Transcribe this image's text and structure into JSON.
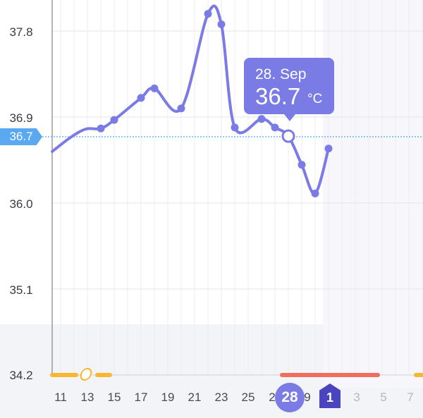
{
  "chart_data": {
    "type": "line",
    "y_ticks": [
      "37.8",
      "36.9",
      "36.0",
      "35.1",
      "34.2"
    ],
    "ylim": [
      34.2,
      38.1
    ],
    "x_tick_labels": [
      "11",
      "13",
      "15",
      "17",
      "19",
      "21",
      "23",
      "25",
      "2",
      "28",
      "9",
      "1",
      "3",
      "5",
      "7"
    ],
    "series": [
      {
        "points": [
          {
            "day": 14,
            "value": 36.78
          },
          {
            "day": 15,
            "value": 36.87
          },
          {
            "day": 17,
            "value": 37.1
          },
          {
            "day": 18,
            "value": 37.2
          },
          {
            "day": 20,
            "value": 36.99
          },
          {
            "day": 22,
            "value": 37.98
          },
          {
            "day": 23,
            "value": 37.87
          },
          {
            "day": 24,
            "value": 36.79
          },
          {
            "day": 26,
            "value": 36.88
          },
          {
            "day": 27,
            "value": 36.79
          },
          {
            "day": 28,
            "value": 36.7
          },
          {
            "day": 29,
            "value": 36.4
          },
          {
            "day": 30,
            "value": 36.1
          },
          {
            "day": 31,
            "value": 36.57
          }
        ]
      }
    ],
    "current_reading": "36.7",
    "line_color": "#7b7be6",
    "reference_line_color": "#5aa9f0",
    "fertile_bar_color": "#f7b731",
    "period_bar_color": "#ef6f5e",
    "grid": true
  },
  "tooltip": {
    "date": "28. Sep",
    "value": "36.7",
    "unit": "°C"
  },
  "selected_day_label": "28",
  "cycle_start_day_label": "1",
  "icons": {
    "ovulation": "ovulation-icon",
    "cycle_start": "cycle-start-marker-icon"
  }
}
